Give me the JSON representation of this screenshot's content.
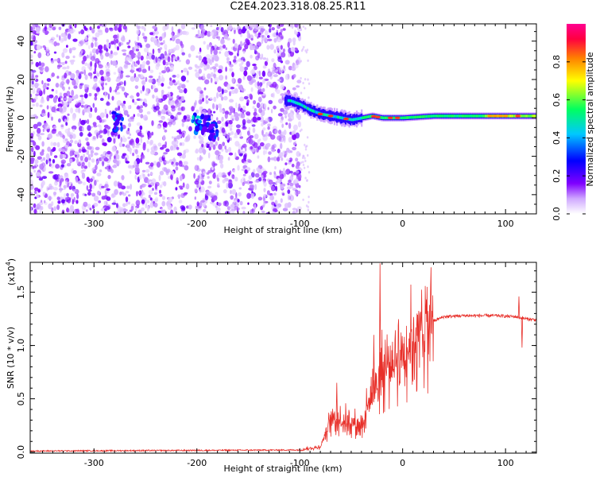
{
  "title": "C2E4.2023.318.08.25.R11",
  "chart_data": [
    {
      "type": "heatmap",
      "xlabel": "Height of straight line (km)",
      "ylabel": "Frequency (Hz)",
      "xlim": [
        -362,
        130
      ],
      "ylim": [
        -50,
        49
      ],
      "xticks": [
        -300,
        -200,
        -100,
        0,
        100
      ],
      "yticks": [
        -40,
        -20,
        0,
        20,
        40
      ],
      "colorbar": {
        "label": "Normalized spectral amplitude",
        "range": [
          0.0,
          1.0
        ],
        "ticks": [
          "0.0",
          "0.2",
          "0.4",
          "0.6",
          "0.8"
        ],
        "colors": [
          "#ffffff",
          "#cfa8ff",
          "#8000ff",
          "#0000ff",
          "#00c8ff",
          "#00ff60",
          "#ffff00",
          "#ff8000",
          "#ff0040",
          "#ff0090"
        ]
      },
      "noise_region_x": [
        -362,
        -100
      ],
      "ridge": [
        {
          "x": -110,
          "y": 9
        },
        {
          "x": -100,
          "y": 7
        },
        {
          "x": -90,
          "y": 4
        },
        {
          "x": -80,
          "y": 2
        },
        {
          "x": -70,
          "y": 1
        },
        {
          "x": -60,
          "y": 0
        },
        {
          "x": -50,
          "y": -1
        },
        {
          "x": -40,
          "y": 0
        },
        {
          "x": -30,
          "y": 1
        },
        {
          "x": -20,
          "y": 0
        },
        {
          "x": 0,
          "y": 0
        },
        {
          "x": 30,
          "y": 1
        },
        {
          "x": 60,
          "y": 1
        },
        {
          "x": 90,
          "y": 1
        },
        {
          "x": 130,
          "y": 1
        }
      ],
      "blobs": [
        {
          "x": -277,
          "y": -2,
          "v": 0.35
        },
        {
          "x": -200,
          "y": -3,
          "v": 0.45
        },
        {
          "x": -190,
          "y": -3,
          "v": 0.35
        },
        {
          "x": -183,
          "y": -7,
          "v": 0.3
        }
      ]
    },
    {
      "type": "line",
      "xlabel": "Height of straight line (km)",
      "ylabel": "SNR (10 * v/v)",
      "yscale_label": "(x10",
      "yscale_exp": "4",
      "yscale_close": ")",
      "xlim": [
        -362,
        130
      ],
      "ylim": [
        -0.01,
        1.78
      ],
      "xticks": [
        -300,
        -200,
        -100,
        0,
        100
      ],
      "yticks": [
        "0.0",
        "0.5",
        "1.0",
        "1.5"
      ],
      "ytick_values": [
        0.0,
        0.5,
        1.0,
        1.5
      ],
      "color": "#e8302a",
      "envelope_x": [
        -362,
        -100,
        -80,
        -70,
        -55,
        -40,
        -30,
        -20,
        -10,
        0,
        10,
        20,
        30,
        40,
        60,
        90,
        110,
        120,
        130
      ],
      "envelope_y": [
        0.01,
        0.02,
        0.05,
        0.3,
        0.3,
        0.25,
        0.55,
        0.75,
        0.85,
        0.95,
        1.05,
        1.15,
        1.23,
        1.27,
        1.28,
        1.28,
        1.27,
        1.25,
        1.24
      ],
      "spikes": [
        {
          "x": -22,
          "y": 1.77
        },
        {
          "x": 14,
          "y": 1.3
        },
        {
          "x": 113,
          "y": 1.46
        },
        {
          "x": 116,
          "y": 0.98
        },
        {
          "x": -28,
          "y": 1.1
        },
        {
          "x": -64,
          "y": 0.65
        }
      ]
    }
  ]
}
